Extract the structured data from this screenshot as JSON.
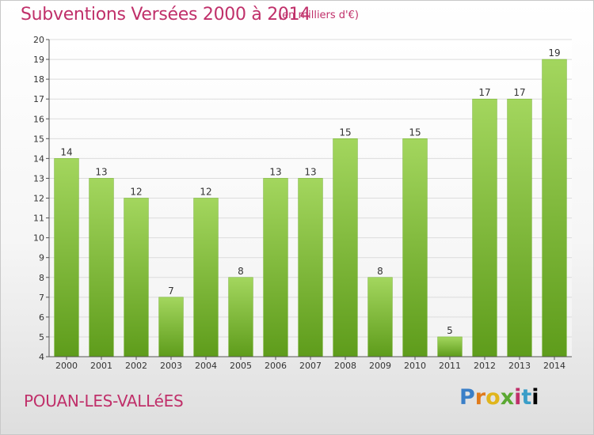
{
  "header": {
    "title": "Subventions Versées 2000 à 2014",
    "unit": "(en milliers d'€)"
  },
  "footer": {
    "commune": "POUAN-LES-VALLéES",
    "logo_letters": [
      "P",
      "r",
      "o",
      "x",
      "i",
      "t",
      "i"
    ],
    "logo_text": "Proxiti"
  },
  "colors": {
    "title": "#c0306a",
    "bar_top": "#9fd35a",
    "bar_bottom": "#5f9e1c",
    "grid": "#d9d9d9"
  },
  "chart_data": {
    "type": "bar",
    "title": "Subventions Versées 2000 à 2014",
    "subtitle": "(en milliers d'€)",
    "categories": [
      "2000",
      "2001",
      "2002",
      "2003",
      "2004",
      "2005",
      "2006",
      "2007",
      "2008",
      "2009",
      "2010",
      "2011",
      "2012",
      "2013",
      "2014"
    ],
    "values": [
      14,
      13,
      12,
      7,
      12,
      8,
      13,
      13,
      15,
      8,
      15,
      5,
      17,
      17,
      19
    ],
    "ylim": [
      4,
      20
    ],
    "yticks": [
      4,
      5,
      6,
      7,
      8,
      9,
      10,
      11,
      12,
      13,
      14,
      15,
      16,
      17,
      18,
      19,
      20
    ],
    "grid": true,
    "data_labels": true
  }
}
